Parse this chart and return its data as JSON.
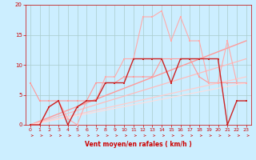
{
  "background_color": "#cceeff",
  "grid_color": "#aacccc",
  "xlabel": "Vent moyen/en rafales ( km/h )",
  "xlim": [
    -0.5,
    23.5
  ],
  "ylim": [
    0,
    20
  ],
  "xticks": [
    0,
    1,
    2,
    3,
    4,
    5,
    6,
    7,
    8,
    9,
    10,
    11,
    12,
    13,
    14,
    15,
    16,
    17,
    18,
    19,
    20,
    21,
    22,
    23
  ],
  "yticks": [
    0,
    5,
    10,
    15,
    20
  ],
  "line_pink_dots": {
    "x": [
      0,
      1,
      2,
      3,
      4,
      5,
      6,
      7,
      8,
      9,
      10,
      11,
      12,
      13,
      14,
      15,
      16,
      17,
      18,
      19,
      20,
      21,
      22,
      23
    ],
    "y": [
      7,
      4,
      4,
      4,
      4,
      4,
      4,
      7,
      7,
      7,
      8,
      8,
      8,
      8,
      11,
      11,
      11,
      11,
      8,
      7,
      7,
      7,
      7,
      7
    ],
    "color": "#ff9999",
    "linewidth": 0.8,
    "marker": "s",
    "markersize": 2.0
  },
  "line_light_pink": {
    "x": [
      0,
      1,
      2,
      3,
      4,
      5,
      6,
      7,
      8,
      9,
      10,
      11,
      12,
      13,
      14,
      15,
      16,
      17,
      18,
      19,
      20,
      21,
      22,
      23
    ],
    "y": [
      0,
      0,
      3,
      4,
      1,
      0,
      4,
      4,
      8,
      8,
      11,
      11,
      18,
      18,
      19,
      14,
      18,
      14,
      14,
      7,
      7,
      14,
      7,
      7
    ],
    "color": "#ffaaaa",
    "linewidth": 0.8,
    "marker": "s",
    "markersize": 2.0
  },
  "line_dark_red": {
    "x": [
      0,
      1,
      2,
      3,
      4,
      5,
      6,
      7,
      8,
      9,
      10,
      11,
      12,
      13,
      14,
      15,
      16,
      17,
      18,
      19,
      20,
      21,
      22,
      23
    ],
    "y": [
      0,
      0,
      3,
      4,
      0,
      3,
      4,
      4,
      7,
      7,
      7,
      11,
      11,
      11,
      11,
      7,
      11,
      11,
      11,
      11,
      11,
      0,
      4,
      4
    ],
    "color": "#cc2222",
    "linewidth": 1.0,
    "marker": "s",
    "markersize": 2.0
  },
  "slope_lines": [
    {
      "x0": 0,
      "x1": 23,
      "y0": 0,
      "y1": 14,
      "color": "#ff9999",
      "linewidth": 1.0
    },
    {
      "x0": 0,
      "x1": 23,
      "y0": 0,
      "y1": 11,
      "color": "#ffbbbb",
      "linewidth": 0.9
    },
    {
      "x0": 0,
      "x1": 23,
      "y0": 0,
      "y1": 8,
      "color": "#ffcccc",
      "linewidth": 0.9
    },
    {
      "x0": 0,
      "x1": 23,
      "y0": 0,
      "y1": 7,
      "color": "#ffdddd",
      "linewidth": 0.8
    }
  ],
  "arrow_color": "#cc3333",
  "tick_color": "#cc0000",
  "label_color": "#cc0000"
}
